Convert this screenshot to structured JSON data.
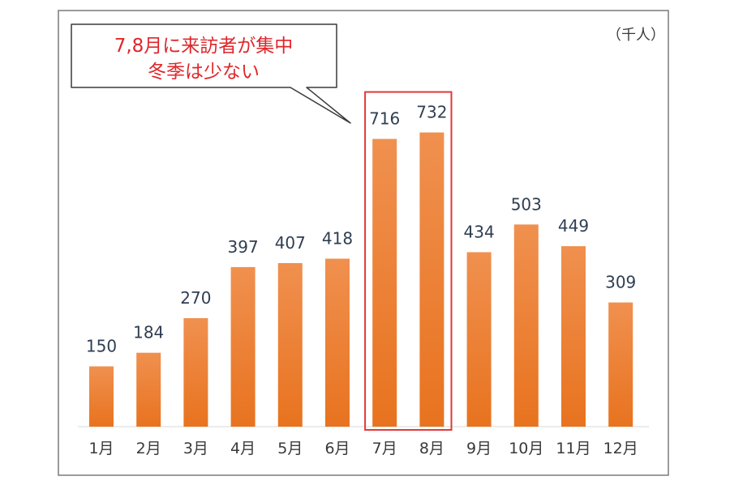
{
  "chart_data": {
    "type": "bar",
    "unit_label": "（千人）",
    "categories": [
      "1月",
      "2月",
      "3月",
      "4月",
      "5月",
      "6月",
      "7月",
      "8月",
      "9月",
      "10月",
      "11月",
      "12月"
    ],
    "values": [
      150,
      184,
      270,
      397,
      407,
      418,
      716,
      732,
      434,
      503,
      449,
      309
    ],
    "ylim": [
      0,
      840
    ],
    "grid": false,
    "legend": "none",
    "highlight": {
      "categories": [
        "7月",
        "8月"
      ]
    },
    "annotation": {
      "lines": [
        "7,8月に来訪者が集中",
        "冬季は少ない"
      ]
    },
    "colors": {
      "bar_top": "#f0904f",
      "bar_bottom": "#e8731f",
      "highlight_border": "#e03a3a",
      "annotation_text": "#e0262a",
      "value_label": "#2f3e52",
      "axis_label": "#3a3a3a",
      "frame": "#7a7a7a"
    }
  }
}
